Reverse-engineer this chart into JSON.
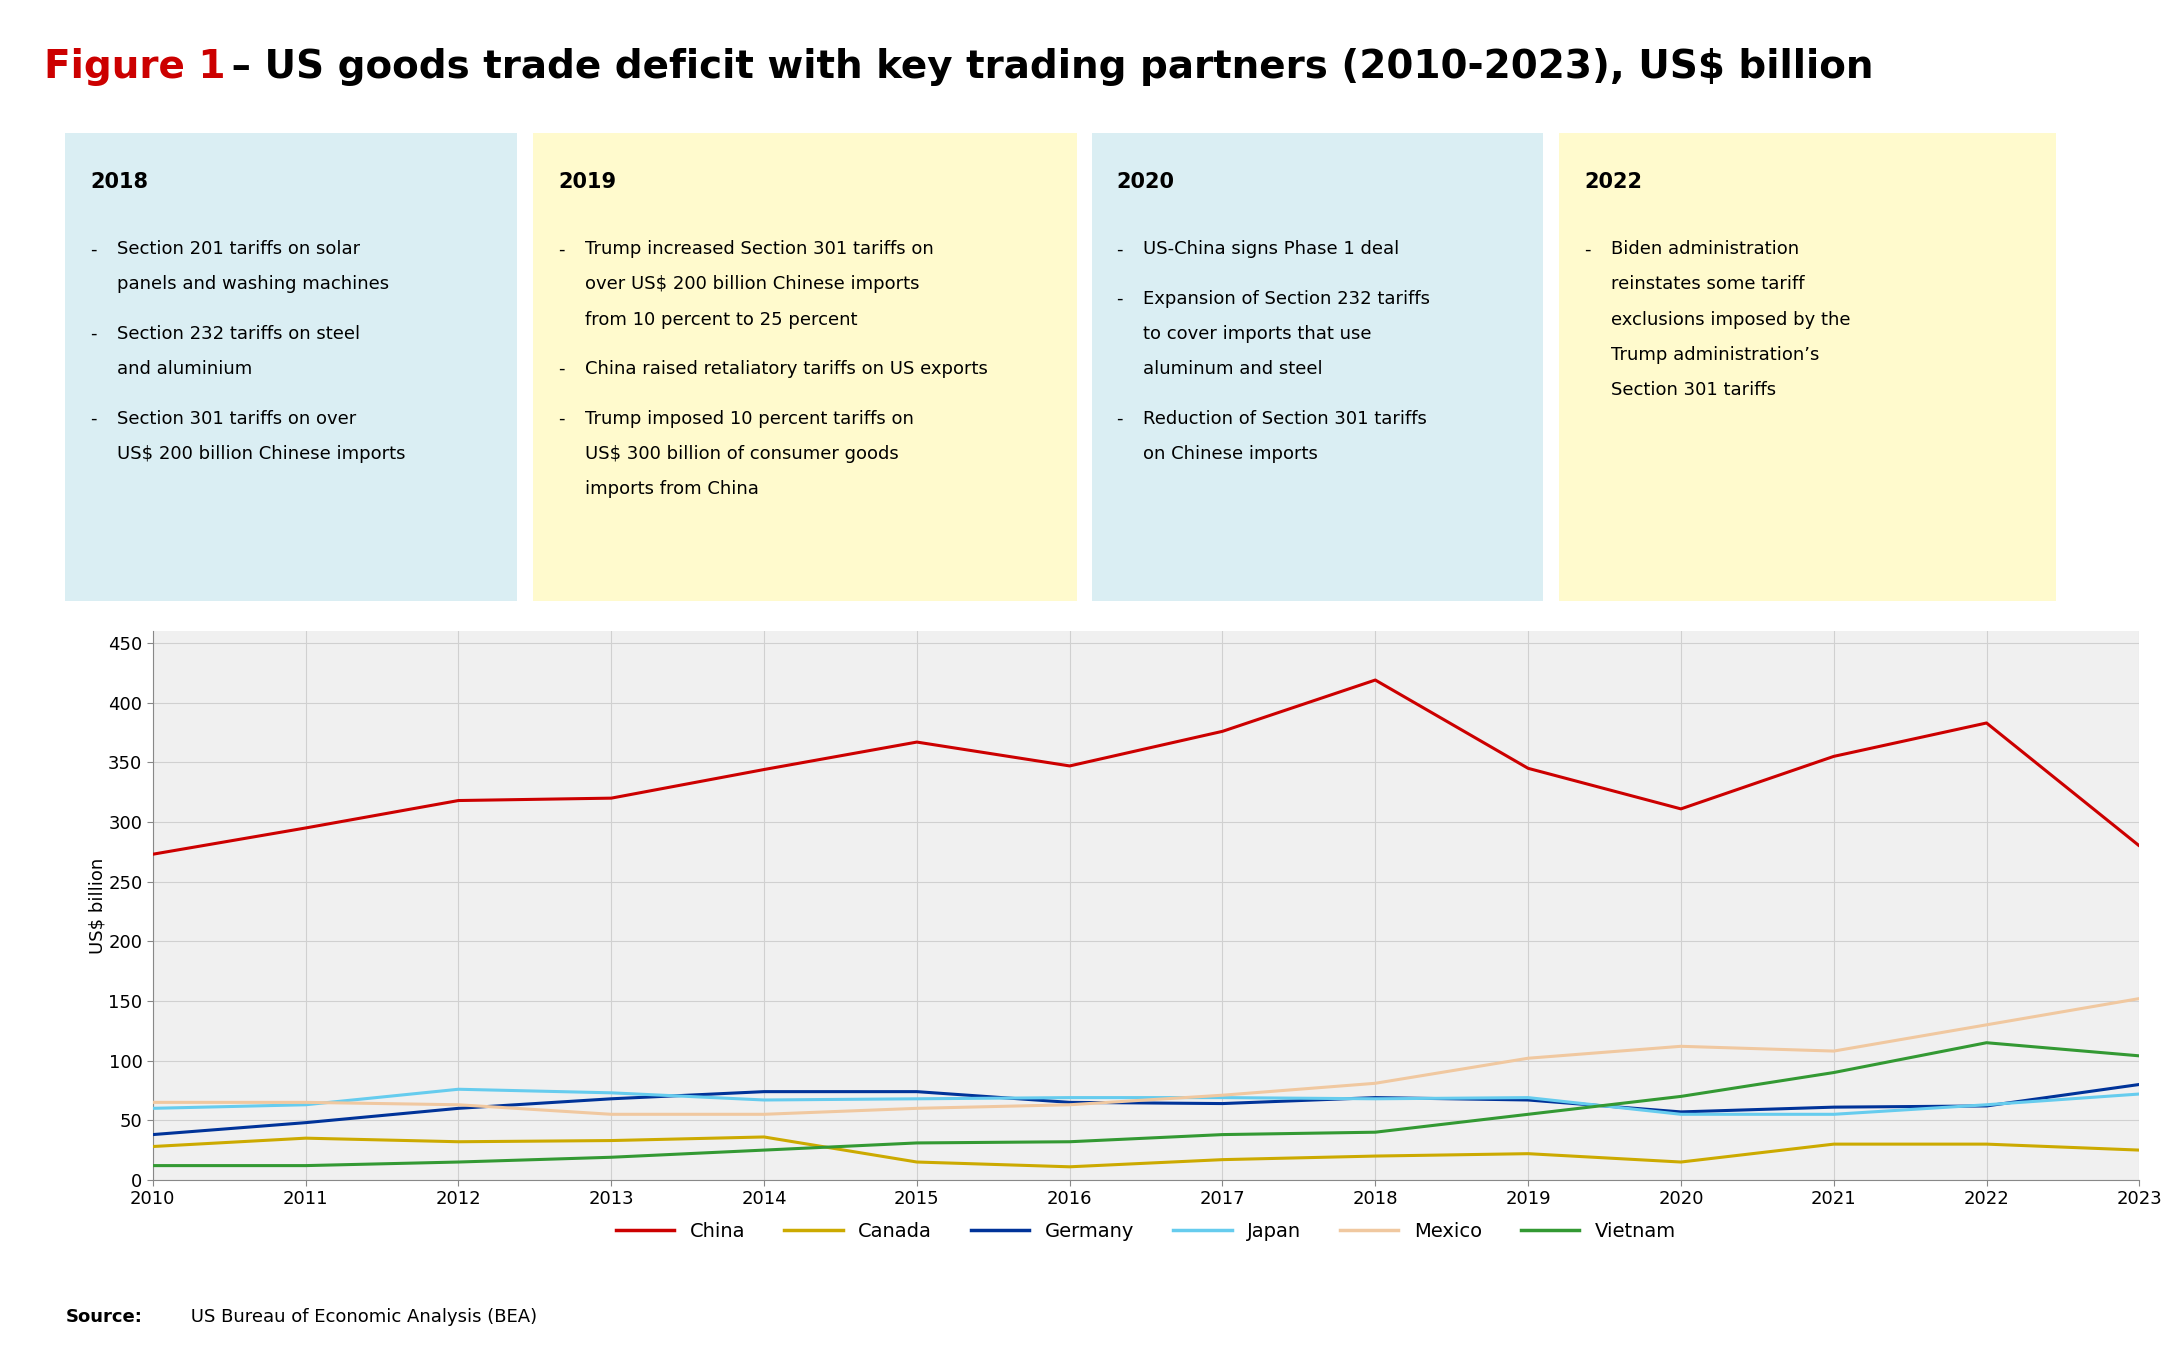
{
  "title_figure": "Figure 1",
  "title_dash": " – ",
  "title_rest": "US goods trade deficit with key trading partners (2010-2023), US$ billion",
  "years": [
    2010,
    2011,
    2012,
    2013,
    2014,
    2015,
    2016,
    2017,
    2018,
    2019,
    2020,
    2021,
    2022,
    2023
  ],
  "series": {
    "China": [
      273,
      295,
      318,
      320,
      344,
      367,
      347,
      376,
      419,
      345,
      311,
      355,
      383,
      280
    ],
    "Canada": [
      28,
      35,
      32,
      33,
      36,
      15,
      11,
      17,
      20,
      22,
      15,
      30,
      30,
      25
    ],
    "Germany": [
      38,
      48,
      60,
      68,
      74,
      74,
      65,
      64,
      69,
      67,
      57,
      61,
      62,
      80
    ],
    "Japan": [
      60,
      63,
      76,
      73,
      67,
      68,
      69,
      69,
      68,
      69,
      55,
      55,
      63,
      72
    ],
    "Mexico": [
      65,
      65,
      63,
      55,
      55,
      60,
      63,
      71,
      81,
      102,
      112,
      108,
      130,
      152
    ],
    "Vietnam": [
      12,
      12,
      15,
      19,
      25,
      31,
      32,
      38,
      40,
      55,
      70,
      90,
      115,
      104
    ]
  },
  "colors": {
    "China": "#cc0000",
    "Canada": "#ccaa00",
    "Germany": "#003399",
    "Japan": "#66ccee",
    "Mexico": "#f0c8a0",
    "Vietnam": "#339933"
  },
  "ylabel": "US$ billion",
  "ylim": [
    0,
    460
  ],
  "yticks": [
    0,
    50,
    100,
    150,
    200,
    250,
    300,
    350,
    400,
    450
  ],
  "source_bold": "Source:",
  "source_normal": " US Bureau of Economic Analysis (BEA)",
  "annotations": [
    {
      "year": "2018",
      "bg_color": "#daeef3",
      "bullets": [
        "Section 201 tariffs on solar\npanels and washing machines",
        "Section 232 tariffs on steel\nand aluminium",
        "Section 301 tariffs on over\nUS$ 200 billion Chinese imports"
      ]
    },
    {
      "year": "2019",
      "bg_color": "#fffacd",
      "bullets": [
        "Trump increased Section 301 tariffs on\nover US$ 200 billion Chinese imports\nfrom 10 percent to 25 percent",
        "China raised retaliatory tariffs on US exports",
        "Trump imposed 10 percent tariffs on\nUS$ 300 billion of consumer goods\nimports from China"
      ]
    },
    {
      "year": "2020",
      "bg_color": "#daeef3",
      "bullets": [
        "US-China signs Phase 1 deal",
        "Expansion of Section 232 tariffs\nto cover imports that use\naluminum and steel",
        "Reduction of Section 301 tariffs\non Chinese imports"
      ]
    },
    {
      "year": "2022",
      "bg_color": "#fffacd",
      "bullets": [
        "Biden administration\nreinstates some tariff\nexclusions imposed by the\nTrump administration’s\nSection 301 tariffs"
      ]
    }
  ],
  "background_color": "#ffffff",
  "grid_color": "#d0d0d0",
  "line_width": 2.2
}
